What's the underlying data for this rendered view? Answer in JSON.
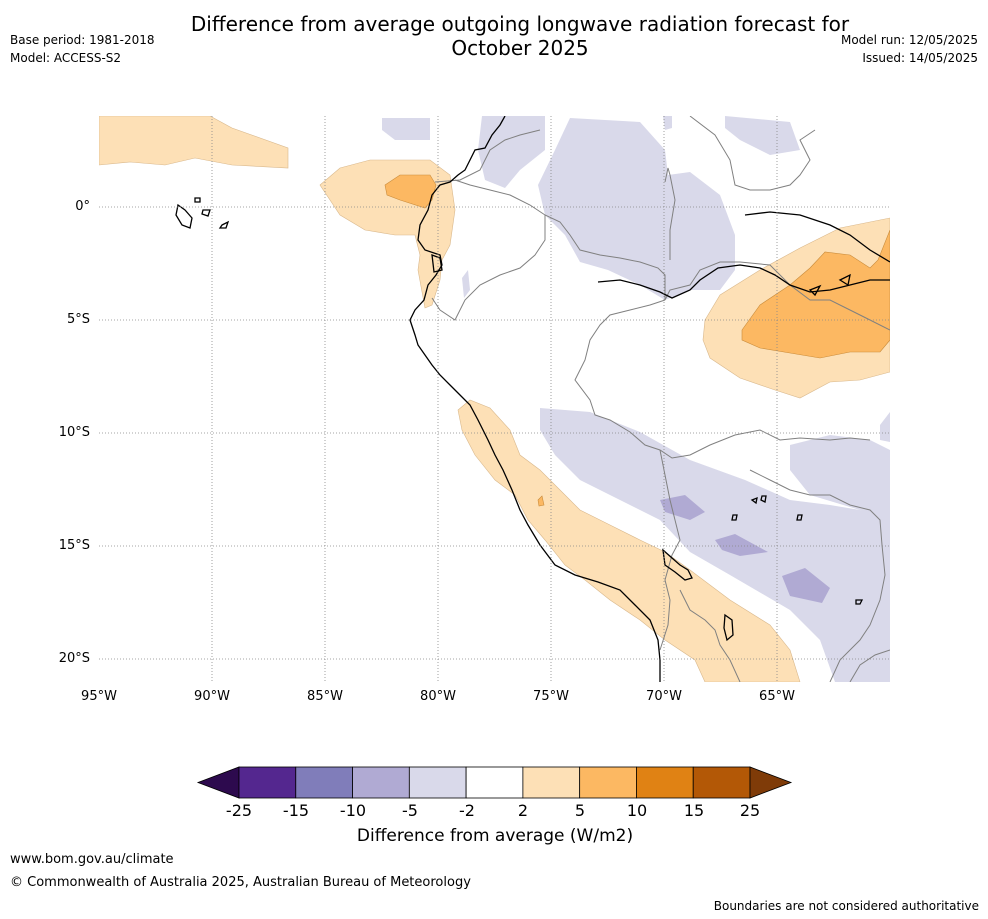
{
  "header": {
    "title_line1": "Difference from average outgoing longwave radiation forecast for",
    "title_line2": "October 2025",
    "base_period": "Base period: 1981-2018",
    "model": "Model: ACCESS-S2",
    "model_run": "Model run: 12/05/2025",
    "issued": "Issued: 14/05/2025"
  },
  "map": {
    "lat_labels": [
      "0°",
      "5°S",
      "10°S",
      "15°S",
      "20°S"
    ],
    "lon_labels": [
      "95°W",
      "90°W",
      "85°W",
      "80°W",
      "75°W",
      "70°W",
      "65°W"
    ],
    "extent": {
      "lon": [
        -95,
        -60
      ],
      "lat": [
        -21,
        4
      ]
    },
    "grid": true
  },
  "legend": {
    "title": "Difference from average (W/m2)",
    "ticks": [
      "-25",
      "-15",
      "-10",
      "-5",
      "-2",
      "2",
      "5",
      "10",
      "15",
      "25"
    ],
    "colors": [
      "#2d0a4e",
      "#54278f",
      "#807dba",
      "#b0aad3",
      "#d9d9ea",
      "#ffffff",
      "#fde0b6",
      "#fcb862",
      "#e08214",
      "#b35806",
      "#7f3b08"
    ]
  },
  "footer": {
    "url": "www.bom.gov.au/climate",
    "copyright": "© Commonwealth of Australia 2025, Australian Bureau of Meteorology",
    "disclaimer": "Boundaries are not considered authoritative"
  }
}
